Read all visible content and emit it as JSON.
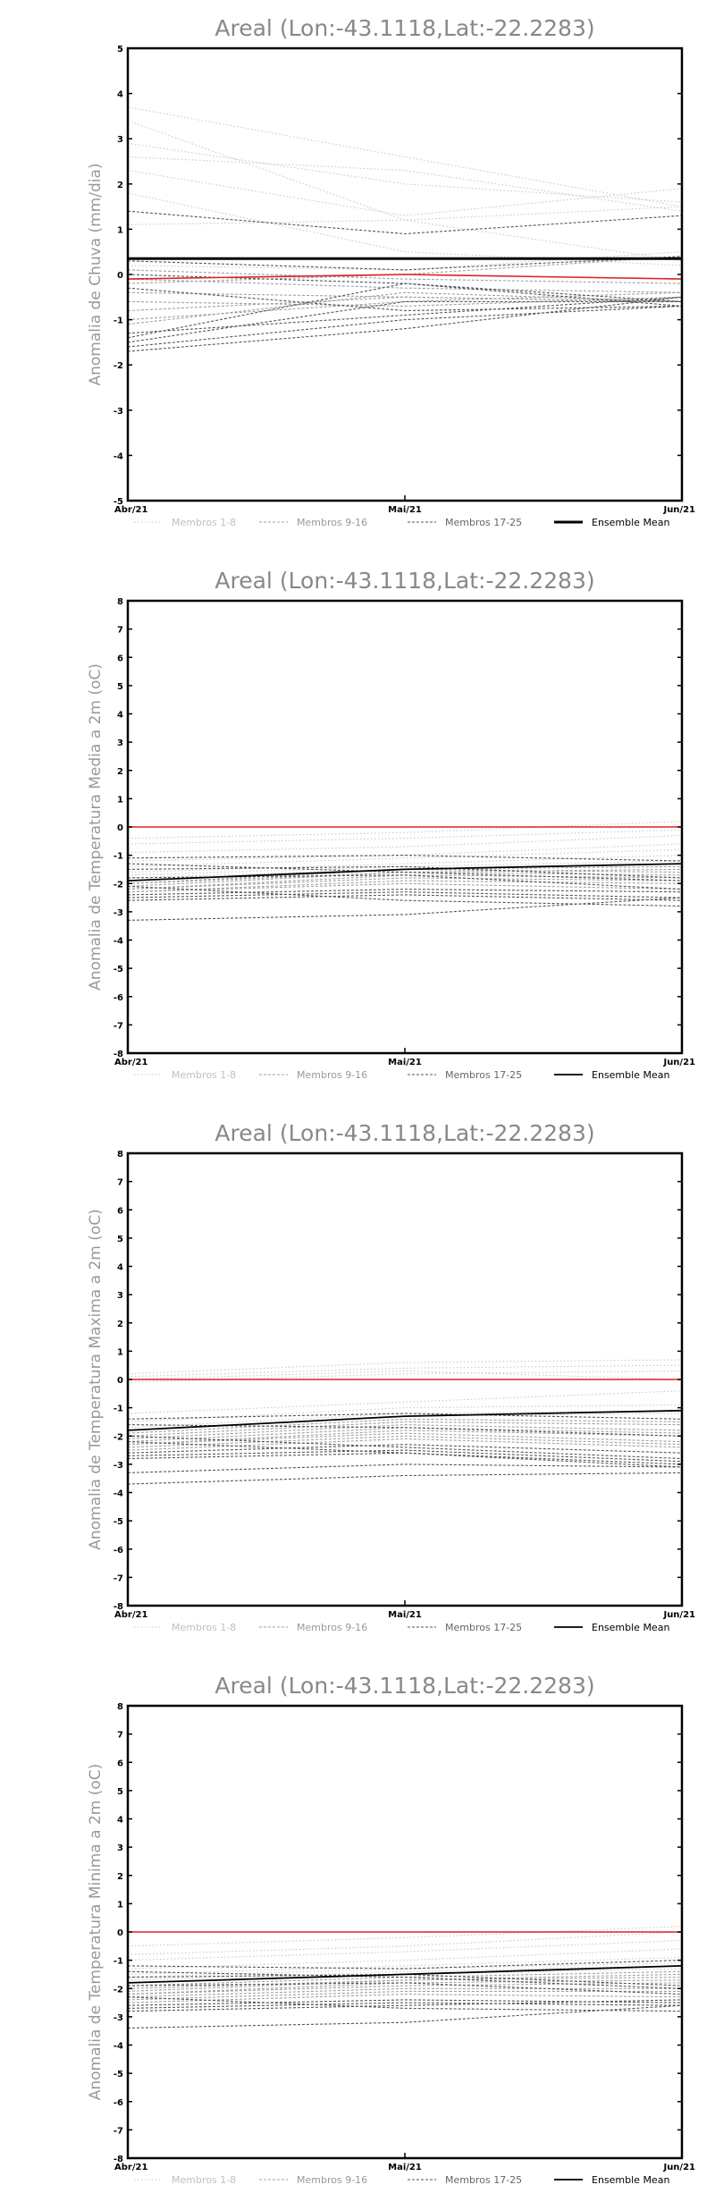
{
  "colors": {
    "zero_line": "#dd2222",
    "mean_line": "#000000",
    "members_light": "#c8c8c8",
    "members_mid": "#a0a0a0",
    "members_dark": "#555555",
    "title": "#888888"
  },
  "legend": [
    {
      "label": "Membros 1-8",
      "style": "dotted-light"
    },
    {
      "label": "Membros 9-16",
      "style": "dashed-mid"
    },
    {
      "label": "Membros 17-25",
      "style": "dashed-dark"
    },
    {
      "label": "Ensemble Mean",
      "style": "solid-bold"
    }
  ],
  "chart_data": [
    {
      "type": "line",
      "title": "Areal (Lon:-43.1118,Lat:-22.2283)",
      "ylabel": "Anomalia de Chuva (mm/dia)",
      "x": [
        "Abr/21",
        "Mai/21",
        "Jun/21"
      ],
      "ylim": [
        -5,
        5
      ],
      "yticks": [
        -5,
        -4,
        -3,
        -2,
        -1,
        0,
        1,
        2,
        3,
        4,
        5
      ],
      "members": [
        [
          3.7,
          2.6,
          1.5
        ],
        [
          3.4,
          1.2,
          0.3
        ],
        [
          2.9,
          2.0,
          1.6
        ],
        [
          2.6,
          2.3,
          1.4
        ],
        [
          2.3,
          1.3,
          1.9
        ],
        [
          1.8,
          0.5,
          0.2
        ],
        [
          1.1,
          1.2,
          1.5
        ],
        [
          0.2,
          0.1,
          0.5
        ],
        [
          0.1,
          -0.1,
          -0.2
        ],
        [
          -0.1,
          -0.3,
          -0.4
        ],
        [
          -0.2,
          0.0,
          0.4
        ],
        [
          -0.4,
          -0.5,
          -0.6
        ],
        [
          -0.6,
          -0.7,
          -0.5
        ],
        [
          -0.8,
          -0.5,
          -0.6
        ],
        [
          -1.0,
          -0.6,
          -0.4
        ],
        [
          -1.1,
          -0.4,
          -0.6
        ],
        [
          -1.3,
          -0.9,
          -0.5
        ],
        [
          -1.4,
          -0.2,
          -0.6
        ],
        [
          -1.6,
          -1.0,
          -0.7
        ],
        [
          -1.7,
          -1.2,
          -0.5
        ],
        [
          -0.3,
          -0.8,
          -0.7
        ],
        [
          0.3,
          0.1,
          0.4
        ],
        [
          0.0,
          -0.2,
          -0.7
        ],
        [
          1.4,
          0.9,
          1.3
        ],
        [
          -1.5,
          -0.6,
          -0.6
        ]
      ],
      "mean": [
        0.35,
        0.35,
        0.35
      ],
      "reference": [
        -0.1,
        0.0,
        -0.1
      ]
    },
    {
      "type": "line",
      "title": "Areal (Lon:-43.1118,Lat:-22.2283)",
      "ylabel": "Anomalia de Temperatura Media a 2m (oC)",
      "x": [
        "Abr/21",
        "Mai/21",
        "Jun/21"
      ],
      "ylim": [
        -8,
        8
      ],
      "yticks": [
        -8,
        -7,
        -6,
        -5,
        -4,
        -3,
        -2,
        -1,
        0,
        1,
        2,
        3,
        4,
        5,
        6,
        7,
        8
      ],
      "members": [
        [
          -0.4,
          -0.2,
          0.2
        ],
        [
          -0.6,
          -0.4,
          -0.1
        ],
        [
          -0.9,
          -0.7,
          -0.3
        ],
        [
          -1.2,
          -1.0,
          -0.6
        ],
        [
          -1.4,
          -1.1,
          -0.8
        ],
        [
          -1.6,
          -1.3,
          -1.0
        ],
        [
          -1.7,
          -1.4,
          -1.2
        ],
        [
          -1.8,
          -1.5,
          -1.3
        ],
        [
          -1.9,
          -1.5,
          -1.4
        ],
        [
          -2.0,
          -1.6,
          -1.5
        ],
        [
          -2.0,
          -1.5,
          -1.6
        ],
        [
          -2.1,
          -1.6,
          -1.7
        ],
        [
          -2.2,
          -1.7,
          -1.8
        ],
        [
          -2.2,
          -1.8,
          -1.9
        ],
        [
          -2.3,
          -1.9,
          -2.0
        ],
        [
          -2.3,
          -2.0,
          -2.2
        ],
        [
          -2.4,
          -2.2,
          -2.3
        ],
        [
          -2.5,
          -2.3,
          -2.5
        ],
        [
          -2.6,
          -2.4,
          -2.6
        ],
        [
          -3.3,
          -3.1,
          -2.5
        ],
        [
          -1.1,
          -1.0,
          -1.2
        ],
        [
          -1.5,
          -1.4,
          -1.8
        ],
        [
          -1.8,
          -1.7,
          -2.2
        ],
        [
          -2.1,
          -2.6,
          -2.8
        ],
        [
          -1.3,
          -1.6,
          -1.9
        ]
      ],
      "mean": [
        -1.9,
        -1.5,
        -1.3
      ],
      "reference": [
        0.0,
        0.0,
        0.0
      ]
    },
    {
      "type": "line",
      "title": "Areal (Lon:-43.1118,Lat:-22.2283)",
      "ylabel": "Anomalia de Temperatura Maxima a 2m (oC)",
      "x": [
        "Abr/21",
        "Mai/21",
        "Jun/21"
      ],
      "ylim": [
        -8,
        8
      ],
      "yticks": [
        -8,
        -7,
        -6,
        -5,
        -4,
        -3,
        -2,
        -1,
        0,
        1,
        2,
        3,
        4,
        5,
        6,
        7,
        8
      ],
      "members": [
        [
          0.2,
          0.6,
          0.7
        ],
        [
          0.1,
          0.4,
          0.5
        ],
        [
          0.0,
          0.3,
          0.0
        ],
        [
          -0.1,
          0.2,
          0.3
        ],
        [
          -1.2,
          -0.8,
          -0.4
        ],
        [
          -1.5,
          -1.0,
          -0.9
        ],
        [
          -1.7,
          -1.2,
          -1.1
        ],
        [
          -1.8,
          -1.3,
          -1.2
        ],
        [
          -1.9,
          -1.4,
          -1.5
        ],
        [
          -2.0,
          -1.5,
          -1.6
        ],
        [
          -2.1,
          -1.6,
          -1.8
        ],
        [
          -2.2,
          -1.7,
          -1.9
        ],
        [
          -2.3,
          -1.8,
          -2.0
        ],
        [
          -2.3,
          -1.9,
          -2.2
        ],
        [
          -2.4,
          -2.0,
          -2.3
        ],
        [
          -2.5,
          -2.1,
          -2.4
        ],
        [
          -2.6,
          -2.3,
          -2.6
        ],
        [
          -2.7,
          -2.5,
          -2.9
        ],
        [
          -2.8,
          -2.6,
          -3.0
        ],
        [
          -3.3,
          -3.0,
          -3.1
        ],
        [
          -3.7,
          -3.4,
          -3.3
        ],
        [
          -1.4,
          -1.2,
          -1.4
        ],
        [
          -2.0,
          -2.4,
          -2.8
        ],
        [
          -1.6,
          -1.7,
          -2.0
        ],
        [
          -2.2,
          -2.6,
          -3.1
        ]
      ],
      "mean": [
        -1.8,
        -1.3,
        -1.1
      ],
      "reference": [
        0.0,
        0.0,
        0.0
      ]
    },
    {
      "type": "line",
      "title": "Areal (Lon:-43.1118,Lat:-22.2283)",
      "ylabel": "Anomalia de Temperatura Minima a 2m (oC)",
      "x": [
        "Abr/21",
        "Mai/21",
        "Jun/21"
      ],
      "ylim": [
        -8,
        8
      ],
      "yticks": [
        -8,
        -7,
        -6,
        -5,
        -4,
        -3,
        -2,
        -1,
        0,
        1,
        2,
        3,
        4,
        5,
        6,
        7,
        8
      ],
      "members": [
        [
          -0.5,
          -0.2,
          0.2
        ],
        [
          -0.8,
          -0.5,
          0.0
        ],
        [
          -1.0,
          -0.7,
          -0.3
        ],
        [
          -1.3,
          -1.0,
          -0.6
        ],
        [
          -1.5,
          -1.2,
          -0.9
        ],
        [
          -1.6,
          -1.3,
          -1.1
        ],
        [
          -1.7,
          -1.4,
          -1.2
        ],
        [
          -1.8,
          -1.5,
          -1.3
        ],
        [
          -1.9,
          -1.6,
          -1.4
        ],
        [
          -2.0,
          -1.7,
          -1.5
        ],
        [
          -2.1,
          -1.7,
          -1.6
        ],
        [
          -2.2,
          -1.8,
          -1.7
        ],
        [
          -2.2,
          -1.9,
          -1.8
        ],
        [
          -2.3,
          -2.0,
          -2.0
        ],
        [
          -2.4,
          -2.1,
          -2.1
        ],
        [
          -2.5,
          -2.2,
          -2.3
        ],
        [
          -2.6,
          -2.4,
          -2.5
        ],
        [
          -2.7,
          -2.5,
          -2.6
        ],
        [
          -2.8,
          -2.6,
          -2.4
        ],
        [
          -3.4,
          -3.2,
          -2.6
        ],
        [
          -1.2,
          -1.3,
          -1.0
        ],
        [
          -1.6,
          -1.5,
          -1.9
        ],
        [
          -1.9,
          -1.8,
          -2.2
        ],
        [
          -2.3,
          -2.7,
          -2.8
        ],
        [
          -1.4,
          -1.6,
          -2.0
        ]
      ],
      "mean": [
        -1.8,
        -1.5,
        -1.2
      ],
      "reference": [
        0.0,
        0.0,
        0.0
      ]
    }
  ]
}
